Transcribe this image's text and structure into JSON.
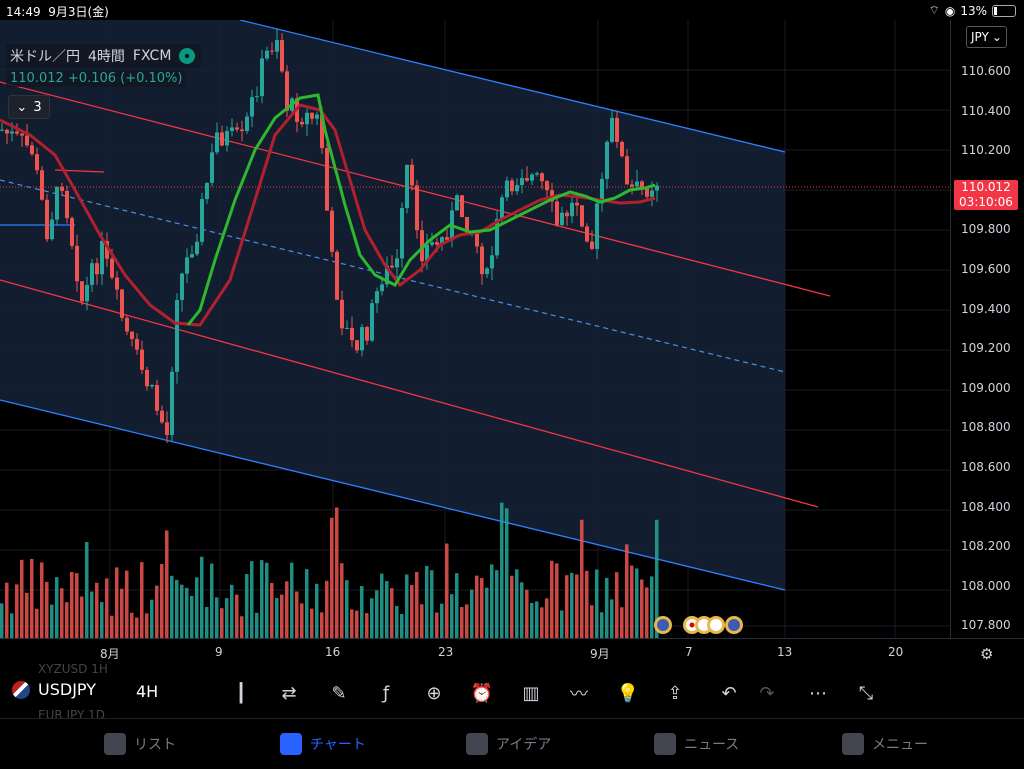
{
  "status_bar": {
    "time": "14:49",
    "date": "9月3日(金)",
    "battery": "13%"
  },
  "legend": {
    "symbol_desc": "米ドル／円",
    "interval": "4時間",
    "broker": "FXCM",
    "quote": "110.012",
    "change": "+0.106 (+0.10%)",
    "studies_count": "3"
  },
  "price_axis": {
    "currency": "JPY",
    "ticks": [
      "110.600",
      "110.400",
      "110.200",
      "110.000",
      "109.800",
      "109.600",
      "109.400",
      "109.200",
      "109.000",
      "108.800",
      "108.600",
      "108.400",
      "108.200",
      "108.000",
      "107.800"
    ],
    "current_price": "110.012",
    "countdown": "03:10:06"
  },
  "time_axis": {
    "labels": [
      "8月",
      "9",
      "16",
      "23",
      "9月",
      "7",
      "13",
      "20"
    ]
  },
  "symbol_bar": {
    "symbol": "USDJPY",
    "timeframe": "4H",
    "ghost_above": "XYZUSD 1H",
    "ghost_below": "EUR JPY 1D"
  },
  "toolbar": [
    "candles-icon",
    "compare-icon",
    "drawing-icon",
    "indicators-icon",
    "add-icon",
    "alert-icon",
    "bars-icon",
    "trend-icon",
    "ideas-bulb-icon",
    "share-icon",
    "undo-icon",
    "redo-icon",
    "more-icon",
    "fullscreen-icon"
  ],
  "tabs": [
    {
      "label": "リスト",
      "icon": "star-icon",
      "active": false
    },
    {
      "label": "チャート",
      "icon": "chart-icon",
      "active": true
    },
    {
      "label": "アイデア",
      "icon": "bulb-icon",
      "active": false
    },
    {
      "label": "ニュース",
      "icon": "news-icon",
      "active": false
    },
    {
      "label": "メニュー",
      "icon": "menu-icon",
      "active": false
    }
  ],
  "colors": {
    "up": "#26a69a",
    "down": "#ef5350",
    "channel_blue": "#2e80ff",
    "channel_red": "#f23645",
    "ma_green": "#2db82d",
    "ma_red": "#b2202f"
  }
}
